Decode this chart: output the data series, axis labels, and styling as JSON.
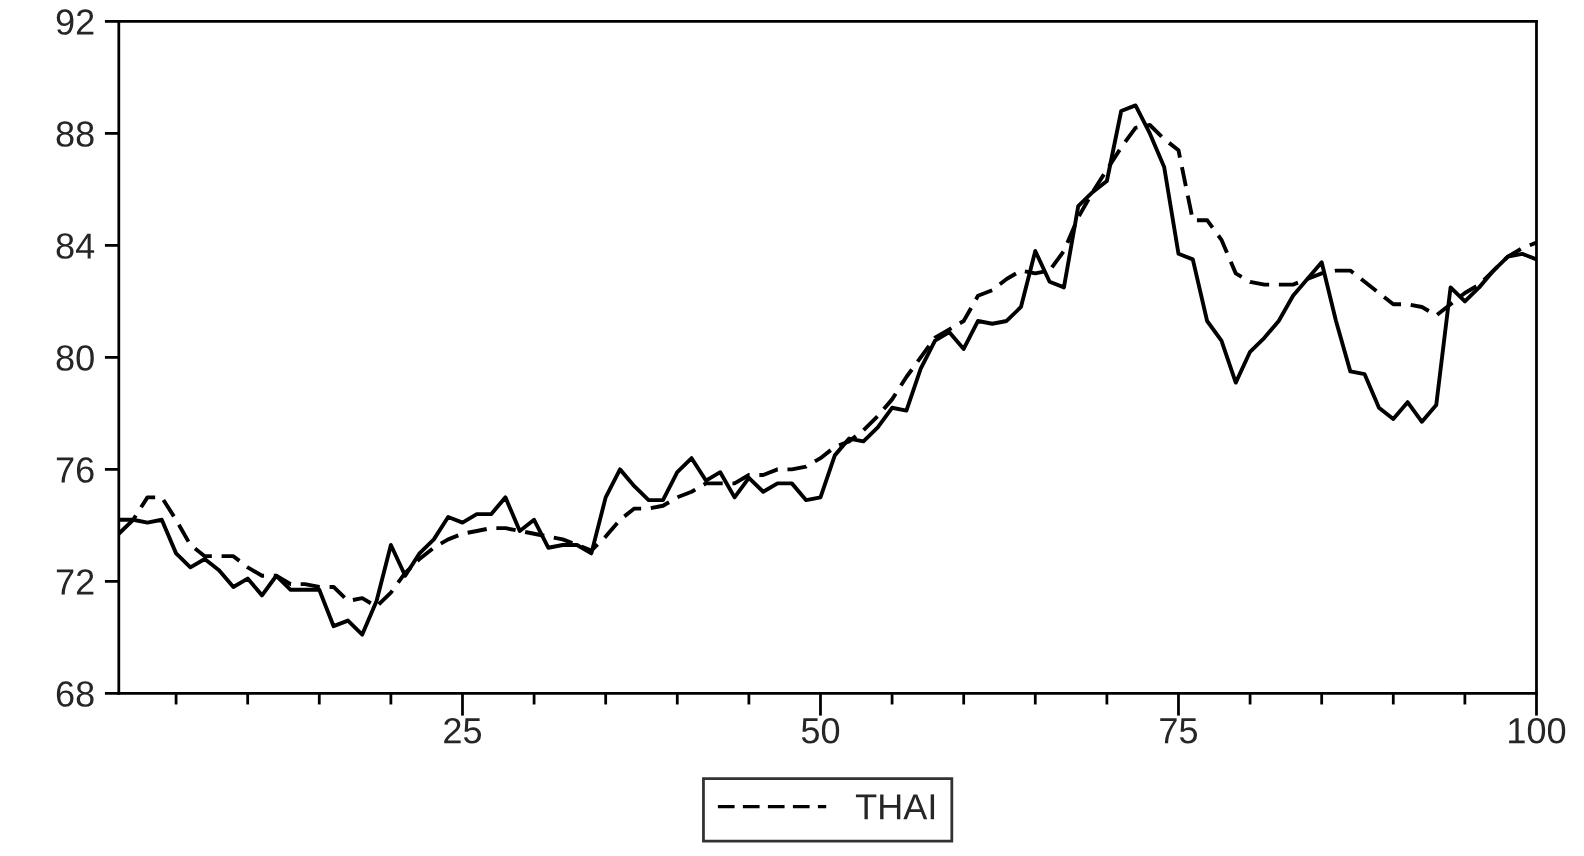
{
  "chart_data": {
    "type": "line",
    "legend": "bottom",
    "marker": "none",
    "grid": false,
    "x": [
      1,
      2,
      3,
      4,
      5,
      6,
      7,
      8,
      9,
      10,
      11,
      12,
      13,
      14,
      15,
      16,
      17,
      18,
      19,
      20,
      21,
      22,
      23,
      24,
      25,
      26,
      27,
      28,
      29,
      30,
      31,
      32,
      33,
      34,
      35,
      36,
      37,
      38,
      39,
      40,
      41,
      42,
      43,
      44,
      45,
      46,
      47,
      48,
      49,
      50,
      51,
      52,
      53,
      54,
      55,
      56,
      57,
      58,
      59,
      60,
      61,
      62,
      63,
      64,
      65,
      66,
      67,
      68,
      69,
      70,
      71,
      72,
      73,
      74,
      75,
      76,
      77,
      78,
      79,
      80,
      81,
      82,
      83,
      84,
      85,
      86,
      87,
      88,
      89,
      90,
      91,
      92,
      93,
      94,
      95,
      96,
      97,
      98,
      99,
      100
    ],
    "xlim": [
      1,
      100
    ],
    "xticks": [
      {
        "value": 5,
        "label": null
      },
      {
        "value": 10,
        "label": null
      },
      {
        "value": 15,
        "label": null
      },
      {
        "value": 20,
        "label": null
      },
      25,
      {
        "value": 30,
        "label": null
      },
      {
        "value": 35,
        "label": null
      },
      {
        "value": 40,
        "label": null
      },
      {
        "value": 45,
        "label": null
      },
      50,
      {
        "value": 55,
        "label": null
      },
      {
        "value": 60,
        "label": null
      },
      {
        "value": 65,
        "label": null
      },
      {
        "value": 70,
        "label": null
      },
      75,
      {
        "value": 80,
        "label": null
      },
      {
        "value": 85,
        "label": null
      },
      {
        "value": 90,
        "label": null
      },
      {
        "value": 95,
        "label": null
      },
      100
    ],
    "ylim": [
      68,
      92
    ],
    "yticks": [
      68,
      72,
      76,
      80,
      84,
      88,
      92
    ],
    "series": [
      {
        "color": "#000000",
        "line_style": "solid",
        "values": [
          73.7,
          74.2,
          74.1,
          74.2,
          73.0,
          72.5,
          72.8,
          72.4,
          71.8,
          72.1,
          71.5,
          72.2,
          71.7,
          71.7,
          71.7,
          70.4,
          70.6,
          70.1,
          71.3,
          73.3,
          72.2,
          73.0,
          73.5,
          74.3,
          74.1,
          74.4,
          74.4,
          75.0,
          73.8,
          74.2,
          73.2,
          73.3,
          73.3,
          73.0,
          75.0,
          76.0,
          75.4,
          74.9,
          74.9,
          75.9,
          76.4,
          75.6,
          75.9,
          75.0,
          75.7,
          75.2,
          75.5,
          75.5,
          74.9,
          75.0,
          76.5,
          77.1,
          77.0,
          77.5,
          78.2,
          78.1,
          79.6,
          80.6,
          80.9,
          80.3,
          81.3,
          81.2,
          81.3,
          81.8,
          83.8,
          82.7,
          82.5,
          85.4,
          85.9,
          86.3,
          88.8,
          89.0,
          88.0,
          86.8,
          83.7,
          83.5,
          81.3,
          80.6,
          79.1,
          80.2,
          80.7,
          81.3,
          82.2,
          82.8,
          83.4,
          81.3,
          79.5,
          79.4,
          78.2,
          77.8,
          78.4,
          77.7,
          78.3,
          82.5,
          82.0,
          82.5,
          83.1,
          83.6,
          83.7,
          83.5
        ]
      },
      {
        "name": "THAI",
        "color": "#000000",
        "line_style": "dashed",
        "values": [
          74.2,
          74.2,
          75.0,
          75.0,
          74.2,
          73.3,
          72.9,
          72.9,
          72.9,
          72.5,
          72.2,
          72.2,
          71.9,
          71.9,
          71.8,
          71.8,
          71.3,
          71.4,
          71.1,
          71.6,
          72.3,
          72.8,
          73.2,
          73.5,
          73.7,
          73.8,
          73.9,
          73.9,
          73.8,
          73.7,
          73.6,
          73.5,
          73.3,
          73.1,
          73.6,
          74.2,
          74.6,
          74.6,
          74.7,
          75.0,
          75.2,
          75.5,
          75.5,
          75.5,
          75.8,
          75.8,
          76.0,
          76.0,
          76.1,
          76.4,
          76.8,
          77.0,
          77.4,
          77.9,
          78.5,
          79.3,
          80.0,
          80.7,
          81.0,
          81.3,
          82.2,
          82.4,
          82.8,
          83.1,
          83.0,
          83.1,
          83.8,
          85.0,
          85.9,
          86.7,
          87.5,
          88.2,
          88.3,
          87.8,
          87.4,
          84.9,
          84.9,
          84.2,
          83.0,
          82.7,
          82.6,
          82.6,
          82.6,
          82.8,
          83.0,
          83.1,
          83.1,
          82.7,
          82.3,
          81.9,
          81.9,
          81.8,
          81.5,
          81.9,
          82.3,
          82.6,
          83.1,
          83.6,
          83.9,
          84.1
        ]
      }
    ]
  }
}
